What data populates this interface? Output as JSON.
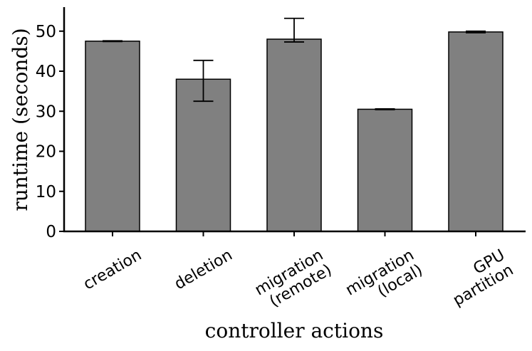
{
  "chart_data": {
    "type": "bar",
    "categories": [
      [
        "creation"
      ],
      [
        "deletion"
      ],
      [
        "migration",
        "(remote)"
      ],
      [
        "migration",
        "(local)"
      ],
      [
        "GPU",
        "partition"
      ]
    ],
    "values": [
      47.5,
      38.0,
      48.0,
      30.5,
      49.8
    ],
    "error_low": [
      47.4,
      32.5,
      47.3,
      30.4,
      49.6
    ],
    "error_high": [
      47.6,
      42.7,
      53.2,
      30.6,
      50.0
    ],
    "title": "",
    "xlabel": "controller actions",
    "ylabel": "runtime (seconds)",
    "ylim": [
      0,
      56
    ],
    "yticks": [
      0,
      10,
      20,
      30,
      40,
      50
    ],
    "bar_color": "#808080",
    "edge_color": "#000000",
    "grid": false,
    "legend": "none"
  }
}
